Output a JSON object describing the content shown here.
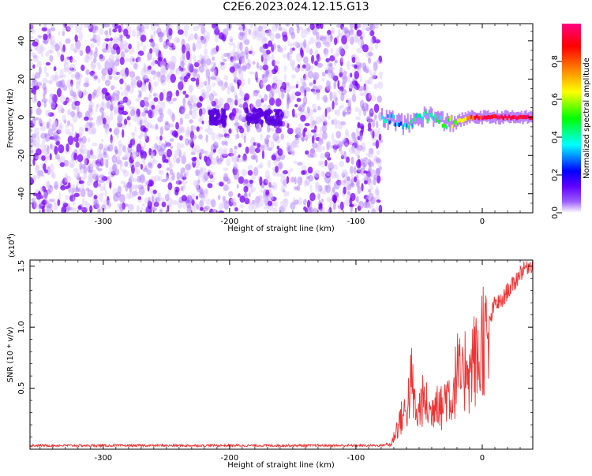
{
  "title": "C2E6.2023.024.12.15.G13",
  "chart_data": [
    {
      "type": "heatmap",
      "xlabel": "Height of straight line (km)",
      "ylabel": "Frequency (Hz)",
      "xlim": [
        -358,
        40
      ],
      "ylim": [
        -50,
        49
      ],
      "x_ticks": [
        -300,
        -200,
        -100,
        0
      ],
      "y_ticks": [
        -40,
        -20,
        0,
        20,
        40
      ],
      "colorbar": {
        "label": "Normalized spectral amplitude",
        "range": [
          0,
          1
        ],
        "ticks": [
          0.0,
          0.2,
          0.4,
          0.6,
          0.8
        ],
        "colors": [
          "#ffffff",
          "#8000ff",
          "#0000ff",
          "#00ffff",
          "#00ff00",
          "#ffff00",
          "#ff8000",
          "#ff0000",
          "#ff0080"
        ]
      },
      "noise_region": {
        "x_range": [
          -358,
          -80
        ],
        "freq_range": [
          -50,
          49
        ],
        "amplitude": 0.05
      },
      "signal_ridge": [
        {
          "x": -80,
          "freq": 0,
          "amplitude": 0.35
        },
        {
          "x": -70,
          "freq": -2,
          "amplitude": 0.3
        },
        {
          "x": -60,
          "freq": -4,
          "amplitude": 0.35
        },
        {
          "x": -50,
          "freq": 0,
          "amplitude": 0.4
        },
        {
          "x": -40,
          "freq": 1,
          "amplitude": 0.4
        },
        {
          "x": -30,
          "freq": -3,
          "amplitude": 0.5
        },
        {
          "x": -20,
          "freq": -2,
          "amplitude": 0.6
        },
        {
          "x": -10,
          "freq": 0,
          "amplitude": 0.8
        },
        {
          "x": 0,
          "freq": 0,
          "amplitude": 0.9
        },
        {
          "x": 20,
          "freq": 0,
          "amplitude": 0.95
        },
        {
          "x": 40,
          "freq": 0,
          "amplitude": 0.95
        }
      ]
    },
    {
      "type": "line",
      "xlabel": "Height of straight line (km)",
      "ylabel": "SNR (10 * v/v)",
      "y_multiplier": "(x10",
      "y_multiplier_exp": "4",
      "xlim": [
        -358,
        40
      ],
      "ylim": [
        0,
        1.55
      ],
      "x_ticks": [
        -300,
        -200,
        -100,
        0
      ],
      "y_ticks": [
        0.5,
        1.0,
        1.5
      ],
      "y_tick_labels": [
        "0.5",
        "1.0",
        "1.5"
      ],
      "color": "#ee3333",
      "series": [
        {
          "x": [
            -358,
            -340,
            -300,
            -250,
            -200,
            -150,
            -100,
            -80,
            -72,
            -68,
            -65,
            -60,
            -56,
            -52,
            -48,
            -44,
            -40,
            -36,
            -32,
            -28,
            -24,
            -20,
            -18,
            -15,
            -12,
            -10,
            -8,
            -5,
            -2,
            0,
            5,
            10,
            15,
            20,
            25,
            30,
            35,
            40
          ],
          "y": [
            0.03,
            0.03,
            0.03,
            0.03,
            0.03,
            0.03,
            0.03,
            0.03,
            0.05,
            0.2,
            0.3,
            0.4,
            0.7,
            0.3,
            0.5,
            0.45,
            0.35,
            0.6,
            0.4,
            0.6,
            0.5,
            0.8,
            0.75,
            0.65,
            1.05,
            0.7,
            0.95,
            0.9,
            0.85,
            1.2,
            1.0,
            1.2,
            1.2,
            1.3,
            1.35,
            1.45,
            1.5,
            1.52
          ]
        }
      ]
    }
  ]
}
